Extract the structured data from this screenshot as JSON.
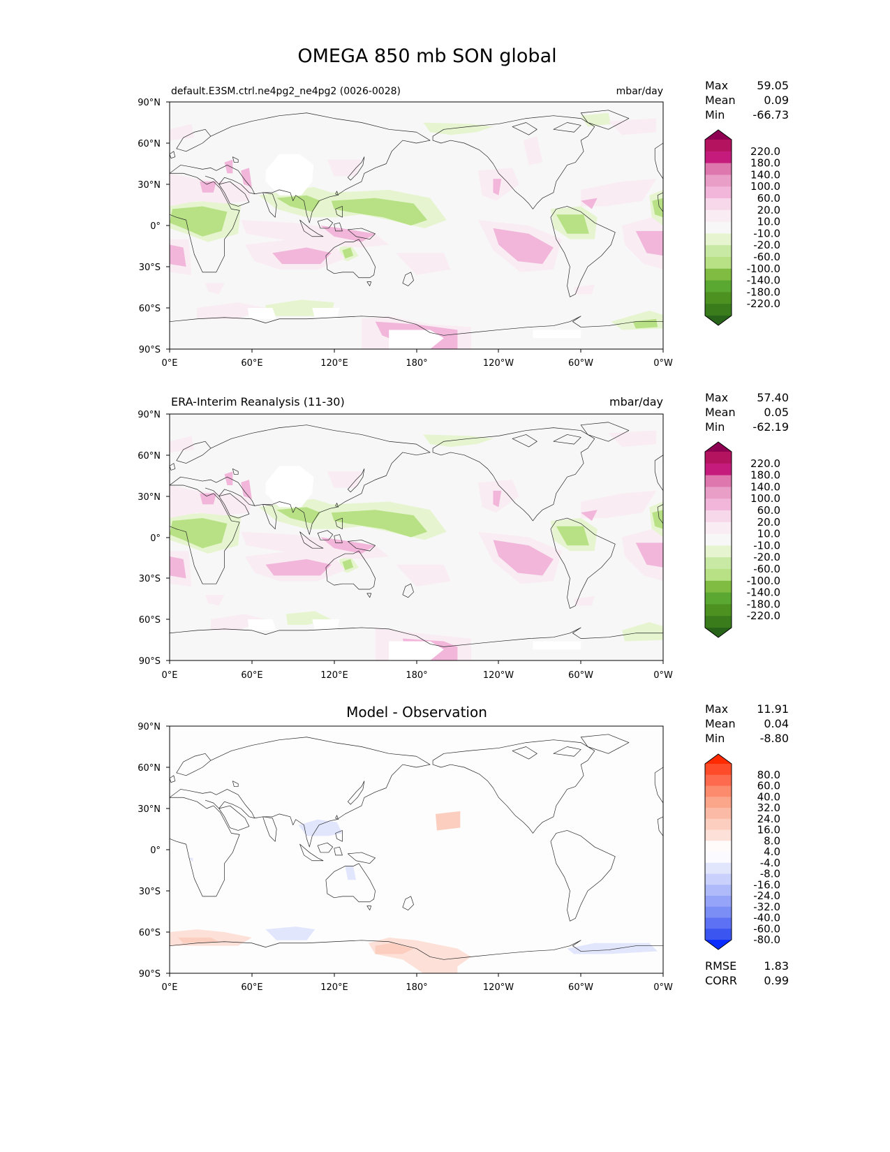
{
  "title": "OMEGA 850 mb SON global",
  "lat_ticks": [
    "90°N",
    "60°N",
    "30°N",
    "0°",
    "30°S",
    "60°S",
    "90°S"
  ],
  "lon_ticks": [
    "0°E",
    "60°E",
    "120°E",
    "180°",
    "120°W",
    "60°W",
    "0°W"
  ],
  "stat_labels": {
    "max": "Max",
    "mean": "Mean",
    "min": "Min",
    "rmse": "RMSE",
    "corr": "CORR"
  },
  "panels": [
    {
      "id": "test",
      "title_left": "default.E3SM.ctrl.ne4pg2_ne4pg2 (0026-0028)",
      "title_center": "",
      "units": "mbar/day",
      "stats": {
        "max": "59.05",
        "mean": "0.09",
        "min": "-66.73"
      },
      "colorbar": {
        "levels": [
          "220.0",
          "180.0",
          "140.0",
          "100.0",
          "60.0",
          "20.0",
          "10.0",
          "-10.0",
          "-20.0",
          "-60.0",
          "-100.0",
          "-140.0",
          "-180.0",
          "-220.0"
        ],
        "colors": [
          "#8e0152",
          "#b4145f",
          "#c51b7d",
          "#de77ae",
          "#e89ec6",
          "#f1b6da",
          "#f7d8ea",
          "#f9ecf3",
          "#f7f7f7",
          "#e6f5d0",
          "#c7e9a4",
          "#b8e186",
          "#7fbc41",
          "#5aa832",
          "#4d9221",
          "#3a7c1b",
          "#276419"
        ]
      }
    },
    {
      "id": "reference",
      "title_left": "ERA-Interim Reanalysis (11-30)",
      "title_center": "",
      "units": "mbar/day",
      "stats": {
        "max": "57.40",
        "mean": "0.05",
        "min": "-62.19"
      },
      "colorbar": {
        "levels": [
          "220.0",
          "180.0",
          "140.0",
          "100.0",
          "60.0",
          "20.0",
          "10.0",
          "-10.0",
          "-20.0",
          "-60.0",
          "-100.0",
          "-140.0",
          "-180.0",
          "-220.0"
        ],
        "colors": [
          "#8e0152",
          "#b4145f",
          "#c51b7d",
          "#de77ae",
          "#e89ec6",
          "#f1b6da",
          "#f7d8ea",
          "#f9ecf3",
          "#f7f7f7",
          "#e6f5d0",
          "#c7e9a4",
          "#b8e186",
          "#7fbc41",
          "#5aa832",
          "#4d9221",
          "#3a7c1b",
          "#276419"
        ]
      }
    },
    {
      "id": "diff",
      "title_left": "",
      "title_center": "Model - Observation",
      "units": "",
      "stats": {
        "max": "11.91",
        "mean": "0.04",
        "min": "-8.80",
        "rmse": "1.83",
        "corr": "0.99"
      },
      "colorbar": {
        "levels": [
          "80.0",
          "60.0",
          "40.0",
          "32.0",
          "24.0",
          "16.0",
          "8.0",
          "4.0",
          "-4.0",
          "-8.0",
          "-16.0",
          "-24.0",
          "-32.0",
          "-40.0",
          "-60.0",
          "-80.0"
        ],
        "colors": [
          "#ff2a00",
          "#fe4b2a",
          "#fd6a4d",
          "#fc8a6c",
          "#fba58b",
          "#fbbaa6",
          "#fccebf",
          "#fde1d8",
          "#fffbfb",
          "#fbfbff",
          "#e2e6fd",
          "#c8d0fb",
          "#aebafa",
          "#95a4f8",
          "#7b8ef6",
          "#5d71f4",
          "#3a55f0",
          "#0a2cff"
        ]
      }
    }
  ]
}
